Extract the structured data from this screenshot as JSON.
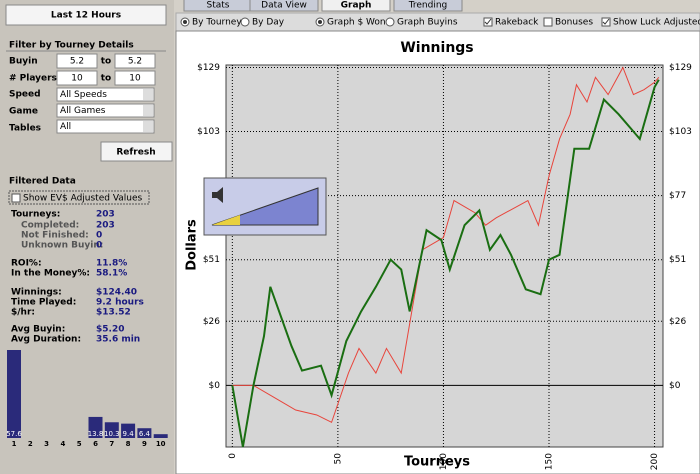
{
  "sidebar": {
    "date_button": "Last 12 Hours",
    "filter_heading": "Filter by Tourney Details",
    "buyin": {
      "label": "Buyin",
      "from": "5.2",
      "to_label": "to",
      "to": "5.2"
    },
    "players": {
      "label": "# Players",
      "from": "10",
      "to_label": "to",
      "to": "10"
    },
    "speed": {
      "label": "Speed",
      "value": "All Speeds"
    },
    "game": {
      "label": "Game",
      "value": "All Games"
    },
    "tables": {
      "label": "Tables",
      "value": "All"
    },
    "refresh": "Refresh",
    "filtered_heading": "Filtered Data",
    "ev_checkbox": "Show EV$ Adjusted Values",
    "stats": [
      [
        "Tourneys:",
        "203"
      ],
      [
        "Completed:",
        "203"
      ],
      [
        "Not Finished:",
        "0"
      ],
      [
        "Unknown Buyin:",
        "0"
      ],
      [
        "ROI%:",
        "11.8%"
      ],
      [
        "In the Money%:",
        "58.1%"
      ],
      [
        "Winnings:",
        "$124.40"
      ],
      [
        "Time Played:",
        "9.2 hours"
      ],
      [
        "$/hr:",
        "$13.52"
      ],
      [
        "Avg Buyin:",
        "$5.20"
      ],
      [
        "Avg Duration:",
        "35.6 min"
      ]
    ]
  },
  "tabs": [
    "Stats",
    "Data View",
    "Graph",
    "Trending"
  ],
  "options": [
    "By Tourney",
    "By Day",
    "Graph $ Won",
    "Graph Buyins",
    "Rakeback",
    "Bonuses",
    "Show Luck Adjusted W"
  ],
  "chart_data": [
    {
      "type": "line",
      "title": "Winnings",
      "x_label": "Tourneys",
      "y_label": "Dollars",
      "xlim": [
        -3,
        204
      ],
      "ylim": [
        -25,
        130
      ],
      "xticks": [
        0,
        50,
        100,
        150,
        200
      ],
      "yticks": [
        {
          "value": 0,
          "label": "$0"
        },
        {
          "value": 26,
          "label": "$26"
        },
        {
          "value": 51,
          "label": "$51"
        },
        {
          "value": 77,
          "label": "$77"
        },
        {
          "value": 103,
          "label": "$103"
        },
        {
          "value": 129,
          "label": "$129"
        }
      ],
      "grid": true,
      "series": [
        {
          "color": "#e8453c",
          "x": [
            0,
            10,
            20,
            30,
            40,
            47,
            55,
            60,
            68,
            73,
            80,
            85,
            90,
            100,
            105,
            115,
            120,
            125,
            140,
            145,
            150,
            155,
            160,
            163,
            168,
            172,
            178,
            185,
            190,
            195,
            200,
            202
          ],
          "values": [
            0,
            0,
            -5,
            -10,
            -12,
            -15,
            5,
            15,
            5,
            15,
            5,
            30,
            55,
            60,
            75,
            70,
            65,
            68,
            75,
            65,
            85,
            100,
            110,
            122,
            115,
            125,
            118,
            129,
            118,
            120,
            123,
            125
          ]
        },
        {
          "color": "#1a6e12",
          "x": [
            0,
            5,
            10,
            15,
            18,
            28,
            33,
            42,
            47,
            54,
            61,
            68,
            75,
            80,
            84,
            92,
            99,
            103,
            110,
            117,
            122,
            127,
            132,
            139,
            146,
            150,
            155,
            162,
            169,
            176,
            183,
            193,
            200,
            202
          ],
          "values": [
            0,
            -25,
            0,
            20,
            40,
            16,
            6,
            8,
            -4,
            18,
            30,
            40,
            51,
            47,
            30,
            63,
            59,
            47,
            65,
            71,
            55,
            61,
            53,
            39,
            37,
            51,
            53,
            96,
            96,
            116,
            110,
            100,
            121,
            124
          ]
        }
      ]
    },
    {
      "type": "bar",
      "categories": [
        "1",
        "2",
        "3",
        "4",
        "5",
        "6",
        "7",
        "8",
        "9",
        "10"
      ],
      "values": [
        57.6,
        0,
        0,
        0,
        0,
        13.8,
        10.3,
        9.4,
        6.4,
        2.5
      ],
      "value_labels": [
        "57.6",
        null,
        null,
        null,
        null,
        "13.8",
        "10.3",
        "9.4",
        "6.4",
        null
      ],
      "color": "#2a2a7a"
    }
  ]
}
